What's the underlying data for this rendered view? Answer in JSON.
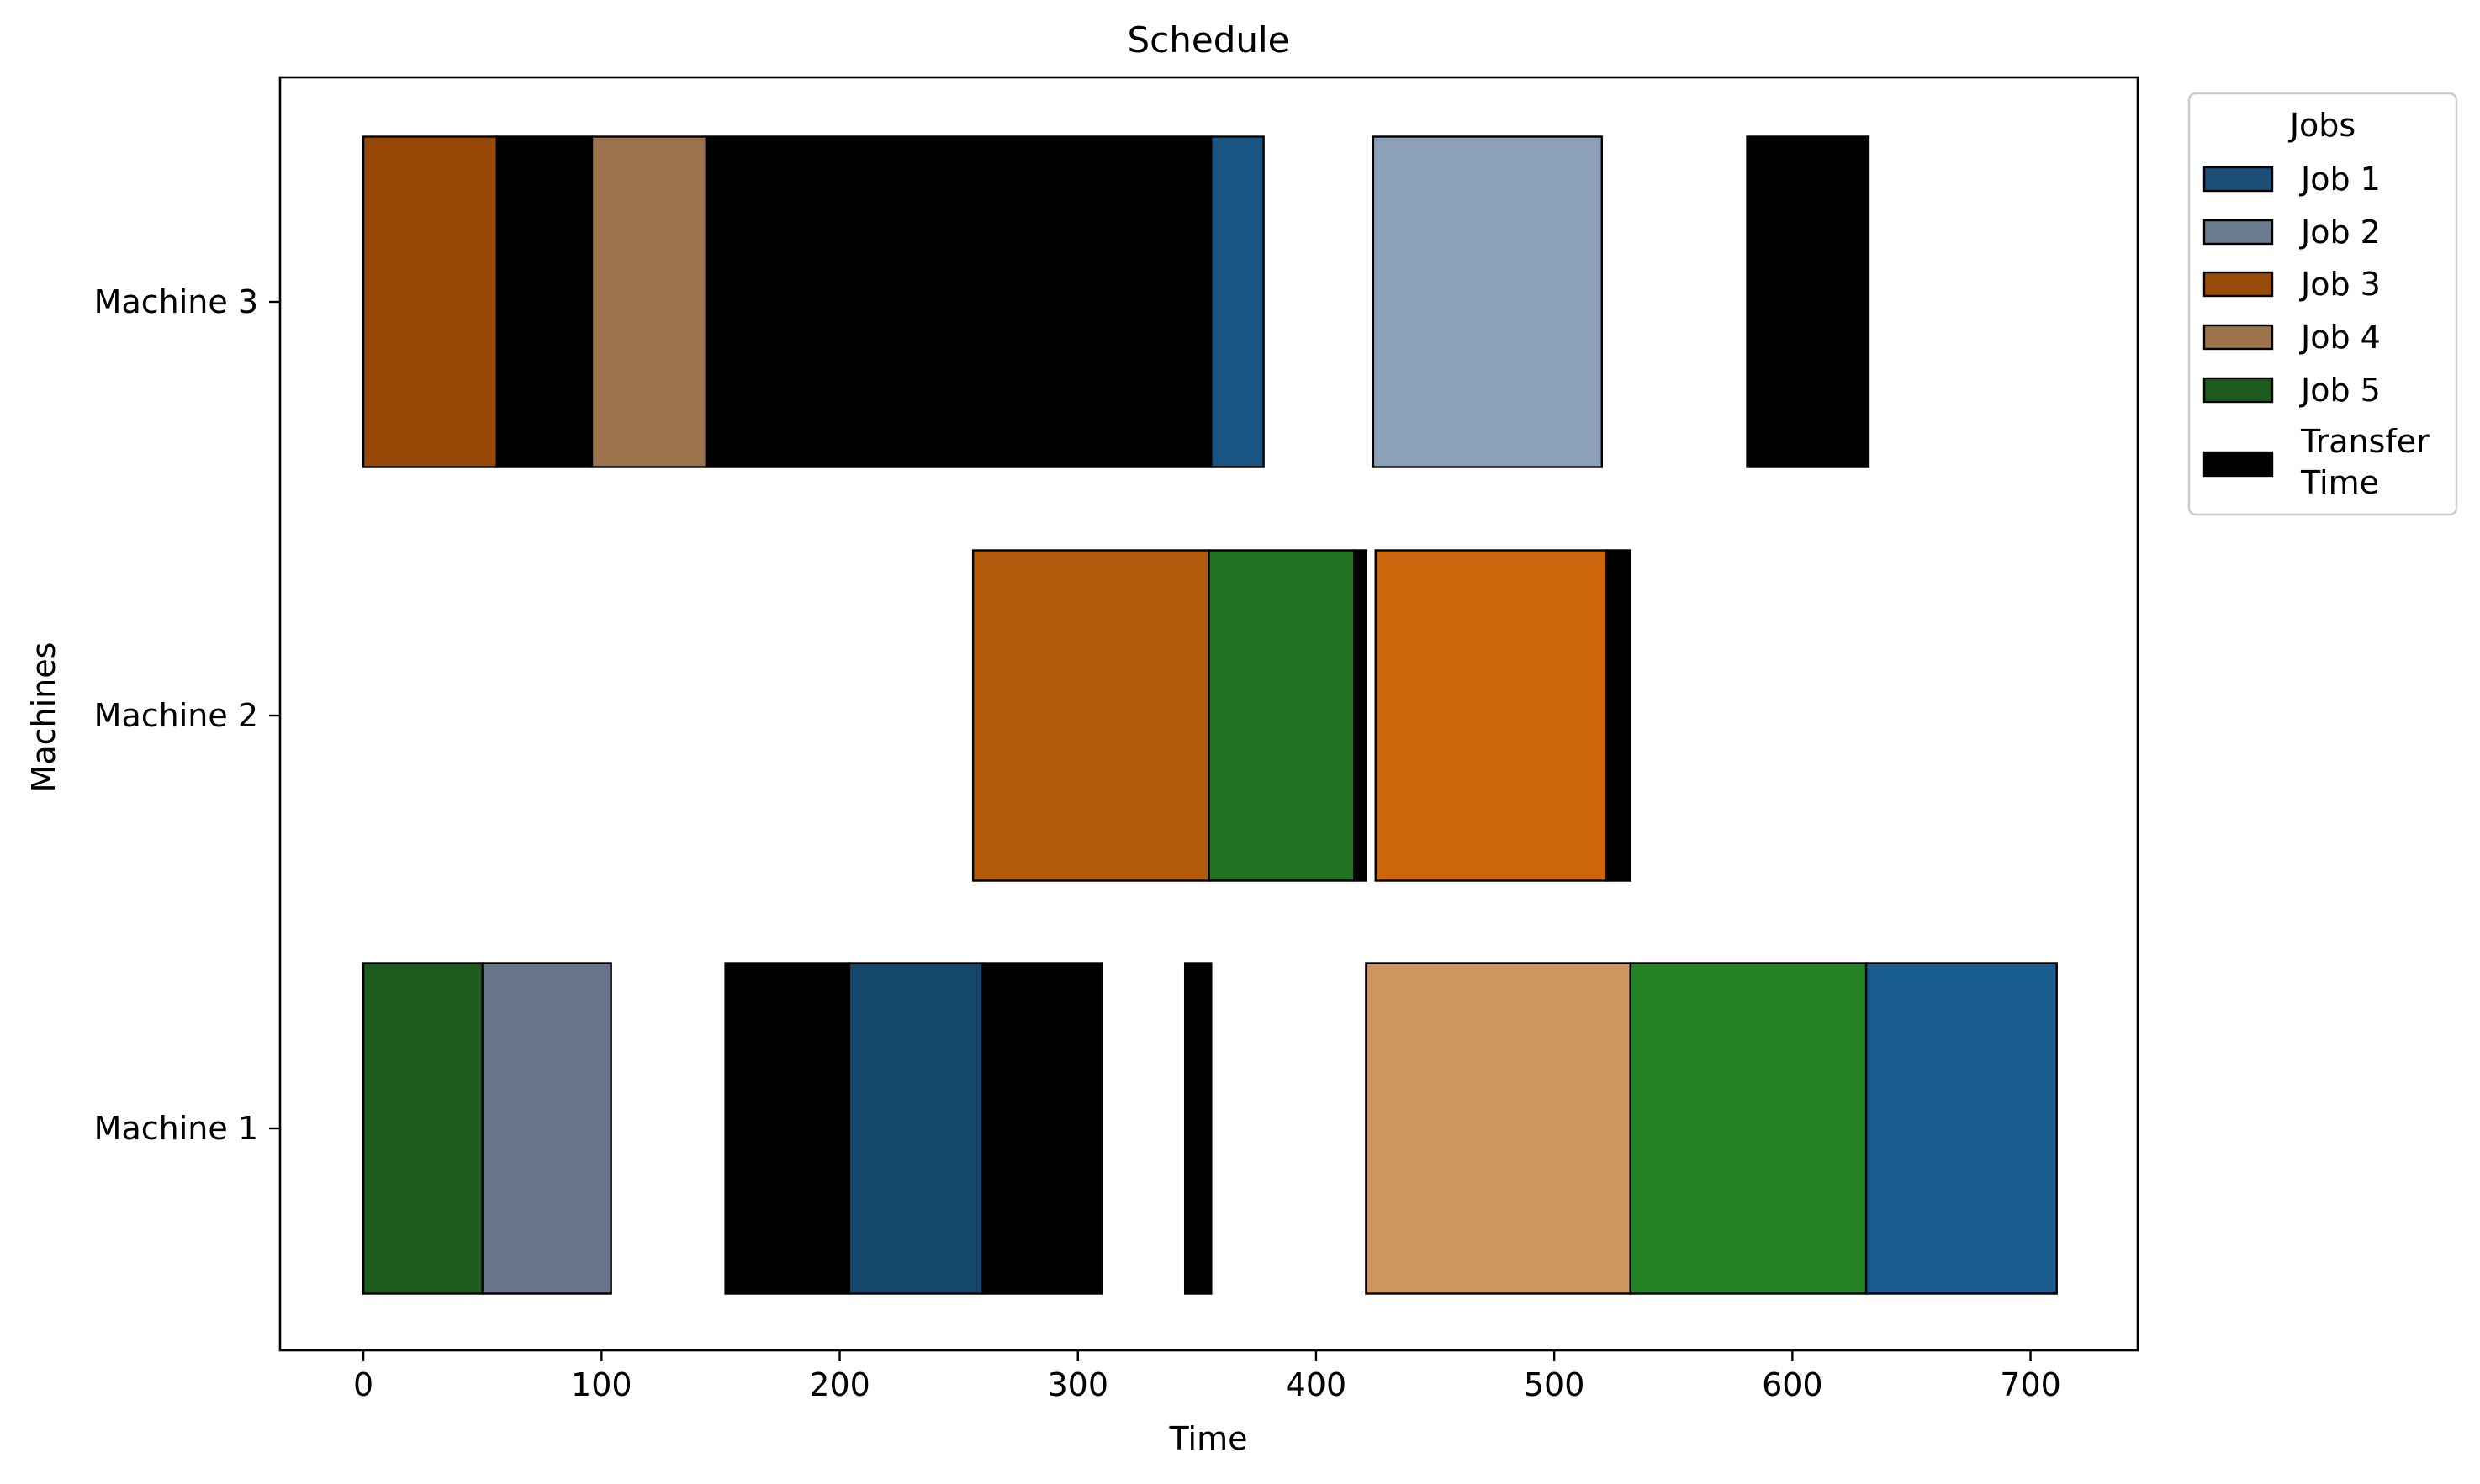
{
  "chart_data": {
    "type": "gantt",
    "title": "Schedule",
    "xlabel": "Time",
    "ylabel": "Machines",
    "xlim": [
      -35,
      745
    ],
    "x_ticks": [
      0,
      100,
      200,
      300,
      400,
      500,
      600,
      700
    ],
    "machines": [
      "Machine 1",
      "Machine 2",
      "Machine 3"
    ],
    "legend": {
      "title": "Jobs",
      "position": "outside-right-top",
      "entries": [
        {
          "label": "Job 1",
          "color": "#1a4f78"
        },
        {
          "label": "Job 2",
          "color": "#6a7a8f"
        },
        {
          "label": "Job 3",
          "color": "#984a08"
        },
        {
          "label": "Job 4",
          "color": "#9b734c"
        },
        {
          "label": "Job 5",
          "color": "#1d5a1d"
        },
        {
          "label": "Transfer Time",
          "color": "#000000"
        }
      ]
    },
    "tasks": [
      {
        "machine": "Machine 1",
        "job": "Job 5",
        "start": 0,
        "end": 50,
        "color": "#1c5b1c"
      },
      {
        "machine": "Machine 1",
        "job": "Job 2",
        "start": 50,
        "end": 104,
        "color": "#667589"
      },
      {
        "machine": "Machine 1",
        "job": "Transfer Time",
        "start": 152,
        "end": 204,
        "color": "#000000"
      },
      {
        "machine": "Machine 1",
        "job": "Job 1",
        "start": 204,
        "end": 260,
        "color": "#15466b"
      },
      {
        "machine": "Machine 1",
        "job": "Transfer Time",
        "start": 260,
        "end": 310,
        "color": "#000000"
      },
      {
        "machine": "Machine 1",
        "job": "Transfer Time",
        "start": 345,
        "end": 356,
        "color": "#000000"
      },
      {
        "machine": "Machine 1",
        "job": "Job 4",
        "start": 421,
        "end": 532,
        "color": "#cd9660"
      },
      {
        "machine": "Machine 1",
        "job": "Job 5",
        "start": 532,
        "end": 631,
        "color": "#248124"
      },
      {
        "machine": "Machine 1",
        "job": "Job 1",
        "start": 631,
        "end": 711,
        "color": "#1a5e91"
      },
      {
        "machine": "Machine 2",
        "job": "Job 3",
        "start": 256,
        "end": 355,
        "color": "#b25a0b"
      },
      {
        "machine": "Machine 2",
        "job": "Job 5",
        "start": 355,
        "end": 416,
        "color": "#217321"
      },
      {
        "machine": "Machine 2",
        "job": "Transfer Time",
        "start": 416,
        "end": 421,
        "color": "#000000"
      },
      {
        "machine": "Machine 2",
        "job": "Job 3",
        "start": 425,
        "end": 522,
        "color": "#cc650b"
      },
      {
        "machine": "Machine 2",
        "job": "Transfer Time",
        "start": 522,
        "end": 532,
        "color": "#000000"
      },
      {
        "machine": "Machine 3",
        "job": "Job 3",
        "start": 0,
        "end": 56,
        "color": "#974908"
      },
      {
        "machine": "Machine 3",
        "job": "Transfer Time",
        "start": 56,
        "end": 96,
        "color": "#000000"
      },
      {
        "machine": "Machine 3",
        "job": "Job 4",
        "start": 96,
        "end": 144,
        "color": "#9a734c"
      },
      {
        "machine": "Machine 3",
        "job": "Transfer Time",
        "start": 144,
        "end": 356,
        "color": "#000000"
      },
      {
        "machine": "Machine 3",
        "job": "Job 1",
        "start": 356,
        "end": 378,
        "color": "#1a5482"
      },
      {
        "machine": "Machine 3",
        "job": "Job 2",
        "start": 424,
        "end": 520,
        "color": "#8ca0b8"
      },
      {
        "machine": "Machine 3",
        "job": "Transfer Time",
        "start": 581,
        "end": 632,
        "color": "#000000"
      }
    ]
  }
}
